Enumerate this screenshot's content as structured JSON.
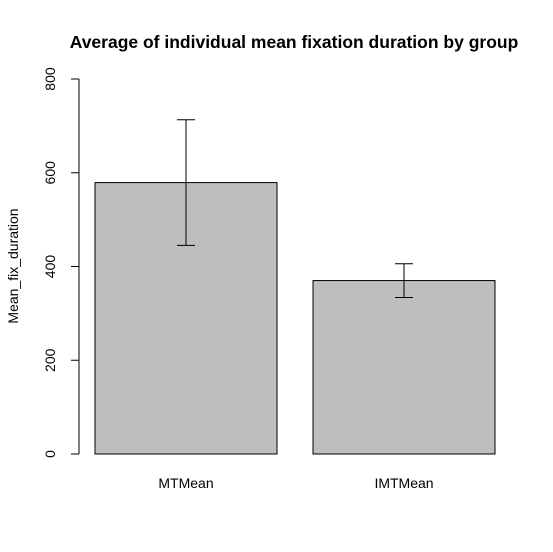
{
  "chart_data": {
    "type": "bar",
    "title": "Average of individual mean fixation duration by group",
    "xlabel": "",
    "ylabel": "Mean_fix_duration",
    "categories": [
      "MTMean",
      "IMTMean"
    ],
    "values": [
      579,
      370
    ],
    "error_bars": [
      {
        "low": 445,
        "high": 713
      },
      {
        "low": 334,
        "high": 406
      }
    ],
    "ylim": [
      0,
      800
    ],
    "yticks": [
      0,
      200,
      400,
      600,
      800
    ],
    "ytick_labels": [
      "0",
      "200",
      "400",
      "600",
      "800"
    ],
    "grid": false,
    "legend": "none",
    "colors": {
      "bar_fill": "#bebebe",
      "bar_stroke": "#000000",
      "error_bar": "#000000",
      "axis": "#000000"
    }
  }
}
